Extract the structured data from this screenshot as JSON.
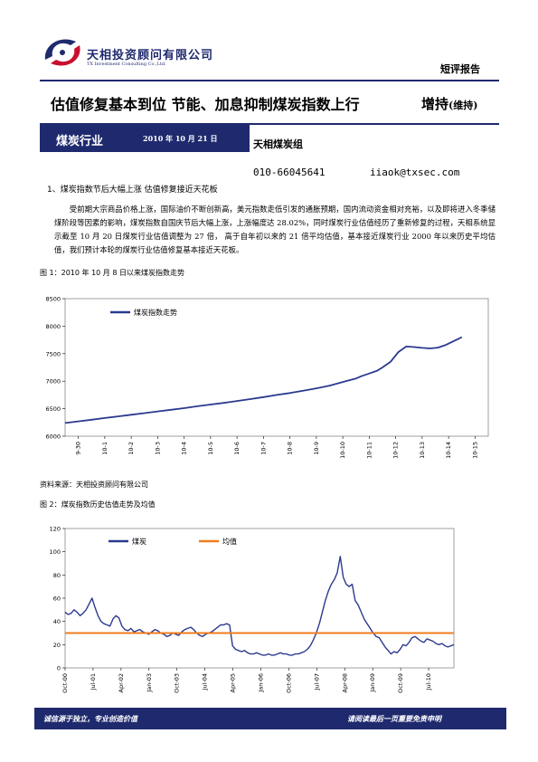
{
  "header": {
    "company_cn": "天相投资顾问有限公司",
    "company_en": "TX Investment Consulting Co.,Ltd.",
    "report_type": "短评报告"
  },
  "title": {
    "headline": "估值修复基本到位 节能、加息抑制煤炭指数上行",
    "rating": "增持",
    "rating_note": "(维持)"
  },
  "banner": {
    "industry": "煤炭行业",
    "date": "2010 年 10 月 21 日",
    "team": "天相煤炭组",
    "phone": "010-66045641",
    "email": "iiaok@txsec.com"
  },
  "section1": {
    "title": "1、煤炭指数节后大幅上涨 估值修复接近天花板",
    "paragraph": "受前期大宗商品价格上涨，国际油价不断创新高，美元指数走低引发的通胀预期，国内流动资金相对充裕，以及即将进入冬季储煤阶段等因素的影响，煤炭指数自国庆节后大幅上涨，上涨幅度达 28.02%，同时煤炭行业估值经历了重新修复的过程，天相系统显示截至 10 月 20 日煤炭行业估值调整为 27 倍， 高于自年初以来的 21 倍平均估值，基本接近煤炭行业 2000 年以来历史平均估值，我们预计本轮的煤炭行业估值修复基本接近天花板。"
  },
  "figure1": {
    "caption": "图 1：2010 年 10 月 8 日以来煤炭指数走势",
    "source": "资料来源：天相投资顾问有限公司"
  },
  "figure2": {
    "caption": "图 2：煤炭指数历史估值走势及均值"
  },
  "footer": {
    "left": "诚信源于独立，专业创造价值",
    "right": "请阅读最后一页重要免责申明"
  },
  "colors": {
    "brand_navy": "#1f2a6e",
    "series_navy": "#2b3a8f",
    "mean_orange": "#f07d1e"
  },
  "chart_data": [
    {
      "type": "line",
      "title": "",
      "legend": "top-left",
      "categories": [
        "9-30",
        "10-1",
        "10-2",
        "10-3",
        "10-4",
        "10-5",
        "10-6",
        "10-7",
        "10-8",
        "10-9",
        "10-10",
        "10-11",
        "10-12",
        "10-13",
        "10-14",
        "10-15"
      ],
      "ylim": [
        6000,
        8500
      ],
      "yticks": [
        6000,
        6500,
        7000,
        7500,
        8000,
        8500
      ],
      "series": [
        {
          "name": "煤炭指数走势",
          "x": [
            0,
            0.5,
            1,
            1.5,
            2,
            2.5,
            3,
            3.5,
            4,
            4.5,
            5,
            5.5,
            6,
            6.5,
            7,
            7.5,
            8,
            8.5,
            9,
            9.5,
            10,
            10.5,
            11,
            11.2,
            11.5,
            11.8,
            12,
            12.3,
            12.6,
            12.9,
            13.2,
            13.5,
            13.8,
            14.1,
            14.4,
            14.7,
            15
          ],
          "values": [
            6240,
            6270,
            6300,
            6330,
            6360,
            6390,
            6420,
            6450,
            6480,
            6510,
            6545,
            6575,
            6605,
            6640,
            6675,
            6710,
            6750,
            6785,
            6825,
            6870,
            6920,
            6985,
            7050,
            7090,
            7140,
            7190,
            7250,
            7350,
            7530,
            7630,
            7620,
            7605,
            7595,
            7610,
            7660,
            7730,
            7800
          ]
        }
      ]
    },
    {
      "type": "line",
      "title": "",
      "legend": "top-left",
      "categories": [
        "Oct-00",
        "Jul-01",
        "Apr-02",
        "Jan-03",
        "Oct-03",
        "Jul-04",
        "Apr-05",
        "Jan-06",
        "Oct-06",
        "Jul-07",
        "Apr-08",
        "Jan-09",
        "Oct-09",
        "Jul-10"
      ],
      "ylim": [
        0,
        120
      ],
      "yticks": [
        0,
        20,
        40,
        60,
        80,
        100,
        120
      ],
      "series": [
        {
          "name": "煤炭",
          "x": [
            0,
            1,
            2,
            3,
            4,
            5,
            6,
            7,
            8,
            9,
            10,
            11,
            12,
            13,
            14,
            15,
            16,
            17,
            18,
            19,
            20,
            21,
            22,
            23,
            24,
            25,
            26,
            27,
            28,
            29,
            30,
            31,
            32,
            33,
            34,
            35,
            36,
            37,
            38,
            39,
            40,
            41,
            42,
            43,
            44,
            45,
            46,
            47,
            48,
            49,
            50,
            51,
            52,
            53,
            54,
            55,
            56,
            57,
            58,
            59,
            60,
            61,
            62,
            63,
            64,
            65,
            66,
            67,
            68,
            69,
            70,
            71,
            72,
            73,
            74,
            75,
            76,
            77,
            78,
            79,
            80,
            81,
            82,
            83,
            84,
            85,
            86,
            87,
            88,
            89,
            90,
            91,
            92,
            93,
            94,
            95,
            96,
            97,
            98,
            99,
            100,
            101,
            102,
            103,
            104,
            105,
            106,
            107,
            108,
            109,
            110,
            111,
            112,
            113,
            114,
            115,
            116,
            117,
            118,
            119,
            120,
            121,
            122,
            123,
            124,
            125,
            126,
            127,
            128,
            129,
            130
          ],
          "values": [
            48,
            46,
            47,
            50,
            48,
            45,
            47,
            50,
            55,
            60,
            52,
            45,
            40,
            38,
            37,
            36,
            42,
            45,
            43,
            36,
            33,
            32,
            34,
            31,
            32,
            33,
            31,
            30,
            29,
            31,
            33,
            32,
            30,
            29,
            27,
            28,
            30,
            29,
            28,
            31,
            33,
            34,
            35,
            33,
            30,
            28,
            27,
            29,
            30,
            31,
            33,
            35,
            37,
            37,
            38,
            37,
            19,
            16,
            15,
            14,
            15,
            13,
            12,
            12,
            13,
            12,
            11,
            11,
            12,
            11,
            11,
            12,
            13,
            12,
            12,
            11,
            11,
            12,
            12,
            13,
            14,
            16,
            19,
            24,
            30,
            38,
            48,
            58,
            66,
            72,
            76,
            82,
            96,
            78,
            72,
            70,
            72,
            58,
            54,
            48,
            42,
            38,
            34,
            30,
            27,
            26,
            22,
            18,
            15,
            12,
            14,
            13,
            16,
            20,
            19,
            22,
            26,
            27,
            25,
            23,
            22,
            25,
            24,
            23,
            21,
            20,
            21,
            19,
            18,
            19,
            20
          ]
        },
        {
          "name": "均值",
          "x": [
            0,
            130
          ],
          "values": [
            30,
            30
          ]
        }
      ]
    }
  ]
}
